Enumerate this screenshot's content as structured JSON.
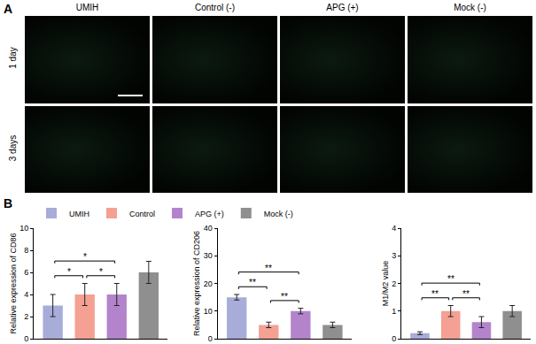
{
  "panel_a": {
    "label": "A",
    "columns": [
      "UMIH",
      "Control (-)",
      "APG (+)",
      "Mock (-)"
    ],
    "rows": [
      "1 day",
      "3 days"
    ]
  },
  "panel_b": {
    "label": "B"
  },
  "chart_data": [
    {
      "type": "bar",
      "y_label": "Relative expression of CD86",
      "categories": [
        "UMIH",
        "Control",
        "APG (+)",
        "Mock (-)"
      ],
      "values": [
        3,
        4,
        4,
        6
      ],
      "errors": [
        1,
        1,
        1,
        1
      ],
      "colors": [
        "#a7acd9",
        "#f4a093",
        "#b384cc",
        "#8f8f8f"
      ],
      "ylim": [
        0,
        10
      ],
      "yticks": [
        0,
        2,
        4,
        6,
        8,
        10
      ],
      "tick_labels": "y",
      "legend": "top",
      "grid": false,
      "annotations": [
        {
          "from": "UMIH",
          "to": "Control",
          "text": "*"
        },
        {
          "from": "Control",
          "to": "APG (+)",
          "text": "*"
        },
        {
          "from": "UMIH",
          "to": "APG (+)",
          "text": "*"
        }
      ]
    },
    {
      "type": "bar",
      "y_label": "Relative expression of CD206",
      "categories": [
        "UMIH",
        "Control",
        "APG (+)",
        "Mock (-)"
      ],
      "values": [
        15,
        5,
        10,
        5
      ],
      "errors": [
        1,
        1,
        1,
        1
      ],
      "colors": [
        "#a7acd9",
        "#f4a093",
        "#b384cc",
        "#8f8f8f"
      ],
      "ylim": [
        0,
        40
      ],
      "yticks": [
        0,
        10,
        20,
        30,
        40
      ],
      "tick_labels": "y",
      "grid": false,
      "annotations": [
        {
          "from": "UMIH",
          "to": "Control",
          "text": "**"
        },
        {
          "from": "Control",
          "to": "APG (+)",
          "text": "**"
        },
        {
          "from": "UMIH",
          "to": "APG (+)",
          "text": "**"
        }
      ]
    },
    {
      "type": "bar",
      "y_label": "M1/M2 value",
      "categories": [
        "UMIH",
        "Control",
        "APG (+)",
        "Mock (-)"
      ],
      "values": [
        0.2,
        1.0,
        0.6,
        1.0
      ],
      "errors": [
        0.05,
        0.2,
        0.2,
        0.2
      ],
      "colors": [
        "#a7acd9",
        "#f4a093",
        "#b384cc",
        "#8f8f8f"
      ],
      "ylim": [
        0,
        4
      ],
      "yticks": [
        0,
        1,
        2,
        3,
        4
      ],
      "tick_labels": "y",
      "grid": false,
      "annotations": [
        {
          "from": "UMIH",
          "to": "Control",
          "text": "**"
        },
        {
          "from": "Control",
          "to": "APG (+)",
          "text": "**"
        },
        {
          "from": "UMIH",
          "to": "APG (+)",
          "text": "**"
        }
      ]
    }
  ]
}
